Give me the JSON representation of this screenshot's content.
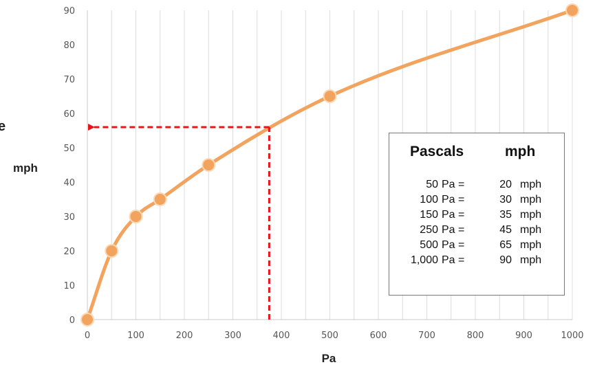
{
  "chart_data": {
    "type": "line",
    "title": "",
    "xlabel": "Pa",
    "ylabel": "mph",
    "xlim": [
      0,
      1000
    ],
    "ylim": [
      0,
      90
    ],
    "x_ticks": [
      "0",
      "100",
      "200",
      "300",
      "400",
      "500",
      "600",
      "700",
      "800",
      "900",
      "1000"
    ],
    "y_ticks": [
      "0",
      "10",
      "20",
      "30",
      "40",
      "50",
      "60",
      "70",
      "80",
      "90"
    ],
    "grid": "vertical",
    "series": [
      {
        "x": [
          0,
          50,
          100,
          150,
          250,
          500,
          1000
        ],
        "y": [
          0,
          20,
          30,
          35,
          45,
          65,
          90
        ],
        "color": "#f2a35e"
      }
    ],
    "annotation": {
      "x": 375,
      "y": 56,
      "style": "dashed arrow",
      "color": "#e8141b"
    },
    "edge_fragment": "e"
  },
  "legend": {
    "header_pa": "Pascals",
    "header_mph": "mph",
    "rows": [
      {
        "pa": "50",
        "pa_unit": "Pa =",
        "mph": "20",
        "mph_unit": "mph"
      },
      {
        "pa": "100",
        "pa_unit": "Pa =",
        "mph": "30",
        "mph_unit": "mph"
      },
      {
        "pa": "150",
        "pa_unit": "Pa =",
        "mph": "35",
        "mph_unit": "mph"
      },
      {
        "pa": "250",
        "pa_unit": "Pa =",
        "mph": "45",
        "mph_unit": "mph"
      },
      {
        "pa": "500",
        "pa_unit": "Pa =",
        "mph": "65",
        "mph_unit": "mph"
      },
      {
        "pa": "1,000",
        "pa_unit": "Pa =",
        "mph": "90",
        "mph_unit": "mph"
      }
    ]
  }
}
